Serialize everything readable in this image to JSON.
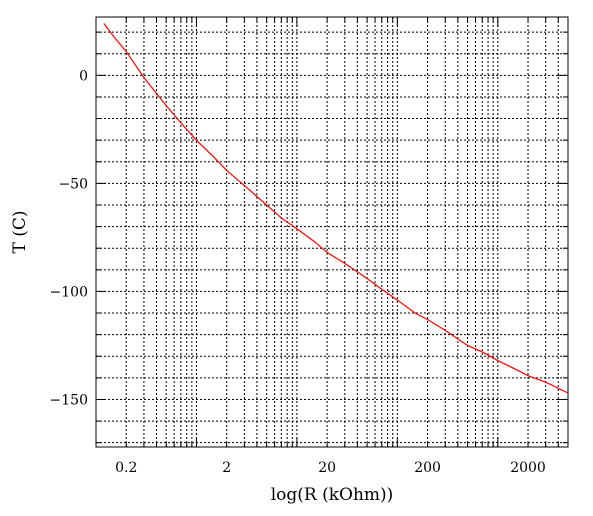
{
  "chart_data": {
    "type": "line",
    "title": "",
    "xlabel": "log(R (kOhm))",
    "ylabel": "T (C)",
    "x_scale": "log",
    "xlim": [
      0.1,
      5000
    ],
    "ylim": [
      -172,
      27
    ],
    "grid": true,
    "grid_style": "dotted",
    "x_major_ticks": [
      0.2,
      2,
      20,
      200,
      2000
    ],
    "x_tick_labels": [
      "0.2",
      "2",
      "20",
      "200",
      "2000"
    ],
    "y_major_ticks": [
      0,
      -50,
      -100,
      -150
    ],
    "y_tick_labels": [
      "0",
      "−50",
      "−100",
      "−150"
    ],
    "series": [
      {
        "color": "#ff0000",
        "x": [
          0.12,
          0.15,
          0.2,
          0.3,
          0.5,
          0.7,
          1,
          1.5,
          2,
          3,
          5,
          7,
          10,
          15,
          20,
          30,
          50,
          70,
          100,
          150,
          200,
          300,
          500,
          700,
          1000,
          1500,
          2000,
          3000,
          5000
        ],
        "y": [
          24,
          18,
          11,
          -1,
          -14,
          -22,
          -30,
          -38,
          -44,
          -51,
          -60,
          -66,
          -71,
          -77,
          -82,
          -87,
          -94,
          -99,
          -104,
          -110,
          -113,
          -118,
          -125,
          -128,
          -132,
          -136,
          -139,
          -142,
          -147
        ]
      }
    ]
  }
}
